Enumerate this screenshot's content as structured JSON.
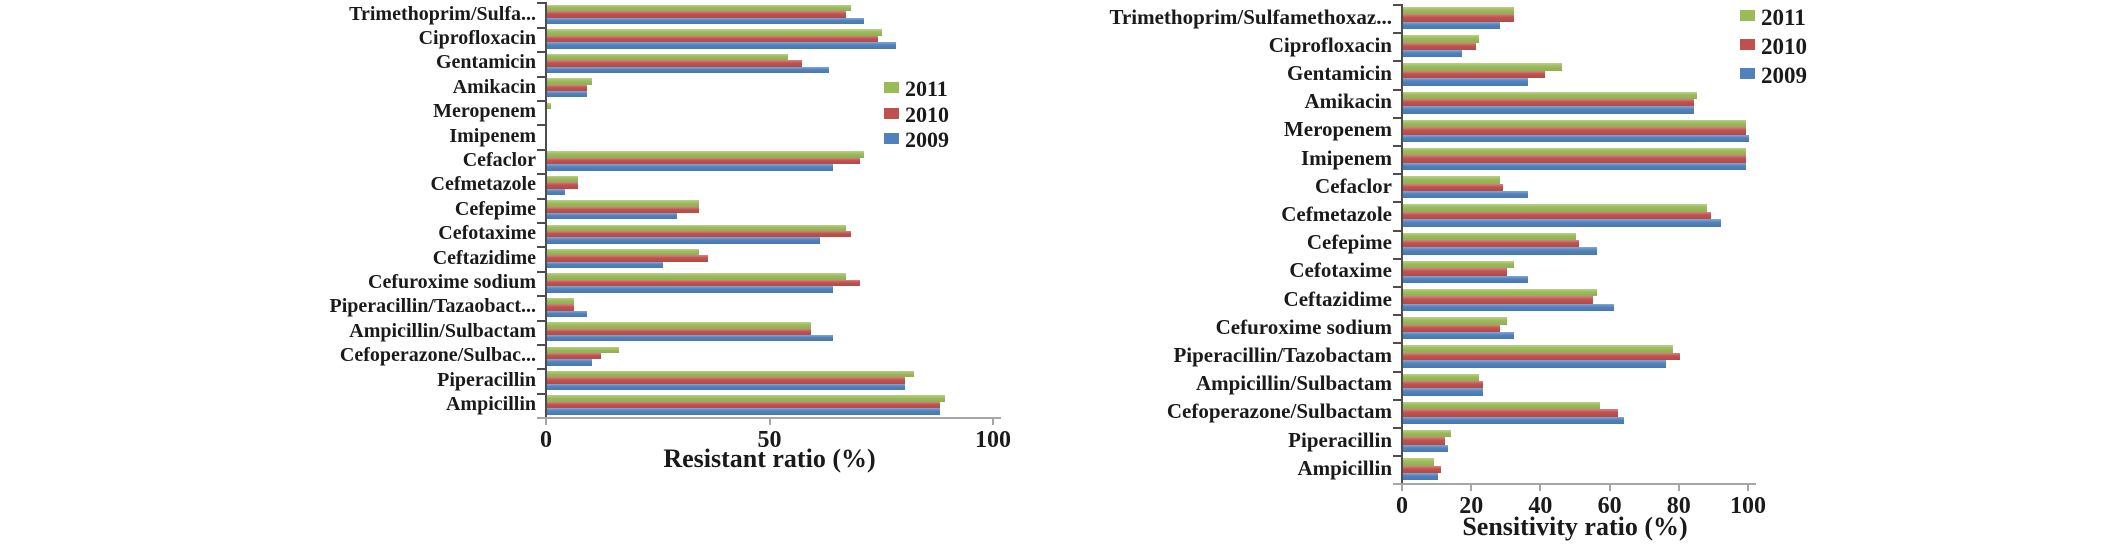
{
  "figure": {
    "background": "#ffffff",
    "text_color": "#1a1a1a"
  },
  "colors": {
    "year_2011": "#9BBB59",
    "year_2010": "#C0504D",
    "year_2009": "#4F81BD",
    "x_axis_line": "#A6A6A6",
    "category_axis_line": "#4d4d4d"
  },
  "legend_years": [
    "2011",
    "2010",
    "2009"
  ],
  "chart_data": [
    {
      "type": "bar",
      "orientation": "horizontal",
      "title": "",
      "xlabel": "Resistant ratio (%)",
      "ylabel": "",
      "xlim": [
        0,
        100
      ],
      "xticks": [
        0,
        50,
        100
      ],
      "grid": false,
      "legend_position": "inside-right",
      "categories": [
        "Trimethoprim/Sulfa...",
        "Ciprofloxacin",
        "Gentamicin",
        "Amikacin",
        "Meropenem",
        "Imipenem",
        "Cefaclor",
        "Cefmetazole",
        "Cefepime",
        "Cefotaxime",
        "Ceftazidime",
        "Cefuroxime sodium",
        "Piperacillin/Tazaobact...",
        "Ampicillin/Sulbactam",
        "Cefoperazone/Sulbac...",
        "Piperacillin",
        "Ampicillin"
      ],
      "series": [
        {
          "name": "2011",
          "color": "#9BBB59",
          "values": [
            68,
            75,
            54,
            10,
            1,
            0,
            71,
            7,
            34,
            67,
            34,
            67,
            6,
            59,
            16,
            82,
            89
          ]
        },
        {
          "name": "2010",
          "color": "#C0504D",
          "values": [
            67,
            74,
            57,
            9,
            0,
            0,
            70,
            7,
            34,
            68,
            36,
            70,
            6,
            59,
            12,
            80,
            88
          ]
        },
        {
          "name": "2009",
          "color": "#4F81BD",
          "values": [
            71,
            78,
            63,
            9,
            0,
            0,
            64,
            4,
            29,
            61,
            26,
            64,
            9,
            64,
            10,
            80,
            88
          ]
        }
      ]
    },
    {
      "type": "bar",
      "orientation": "horizontal",
      "title": "",
      "xlabel": "Sensitivity ratio (%)",
      "ylabel": "",
      "xlim": [
        0,
        100
      ],
      "xticks": [
        0,
        20,
        40,
        60,
        80,
        100
      ],
      "grid": false,
      "legend_position": "outside-top-right",
      "categories": [
        "Trimethoprim/Sulfamethoxaz...",
        "Ciprofloxacin",
        "Gentamicin",
        "Amikacin",
        "Meropenem",
        "Imipenem",
        "Cefaclor",
        "Cefmetazole",
        "Cefepime",
        "Cefotaxime",
        "Ceftazidime",
        "Cefuroxime sodium",
        "Piperacillin/Tazobactam",
        "Ampicillin/Sulbactam",
        "Cefoperazone/Sulbactam",
        "Piperacillin",
        "Ampicillin"
      ],
      "series": [
        {
          "name": "2011",
          "color": "#9BBB59",
          "values": [
            32,
            22,
            46,
            85,
            99,
            99,
            28,
            88,
            50,
            32,
            56,
            30,
            78,
            22,
            57,
            14,
            9
          ]
        },
        {
          "name": "2010",
          "color": "#C0504D",
          "values": [
            32,
            21,
            41,
            84,
            99,
            99,
            29,
            89,
            51,
            30,
            55,
            28,
            80,
            23,
            62,
            12,
            11
          ]
        },
        {
          "name": "2009",
          "color": "#4F81BD",
          "values": [
            28,
            17,
            36,
            84,
            100,
            99,
            36,
            92,
            56,
            36,
            61,
            32,
            76,
            23,
            64,
            13,
            10
          ]
        }
      ]
    }
  ]
}
